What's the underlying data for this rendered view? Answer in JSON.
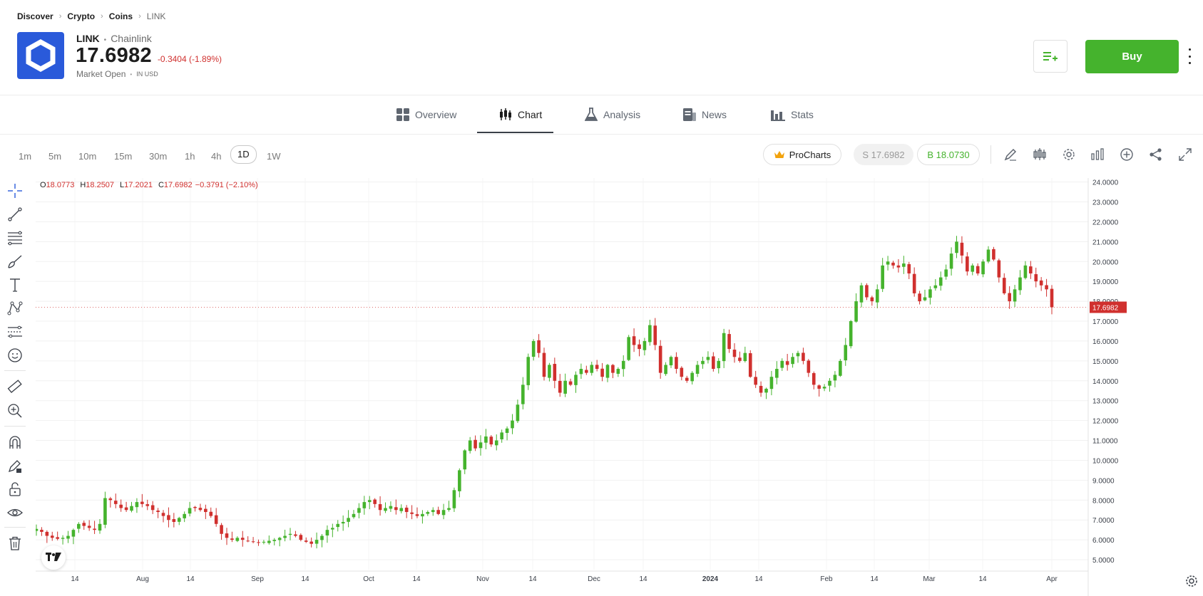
{
  "breadcrumb": [
    "Discover",
    "Crypto",
    "Coins",
    "LINK"
  ],
  "instrument": {
    "symbol": "LINK",
    "name": "Chainlink",
    "price": "17.6982",
    "change": "-0.3404 (-1.89%)",
    "market_status": "Market Open",
    "currency": "IN USD"
  },
  "actions": {
    "buy_label": "Buy"
  },
  "tabs": [
    {
      "label": "Overview",
      "icon": "grid-icon"
    },
    {
      "label": "Chart",
      "icon": "candles-icon",
      "active": true
    },
    {
      "label": "Analysis",
      "icon": "flask-icon"
    },
    {
      "label": "News",
      "icon": "newspaper-icon"
    },
    {
      "label": "Stats",
      "icon": "bars-icon"
    }
  ],
  "timeframes": [
    "1m",
    "5m",
    "10m",
    "15m",
    "30m",
    "1h",
    "4h",
    "1D",
    "1W"
  ],
  "active_timeframe": "1D",
  "toolbar": {
    "procharts_label": "ProCharts",
    "sell_label": "S 17.6982",
    "buy_label": "B 18.0730"
  },
  "ohlc": {
    "o_label": "O",
    "o": "18.0773",
    "h_label": "H",
    "h": "18.2507",
    "l_label": "L",
    "l": "17.2021",
    "c_label": "C",
    "c": "17.6982",
    "chg": "−0.3791 (−2.10%)"
  },
  "colors": {
    "up": "#45b32d",
    "down": "#d0302e",
    "accent": "#45b32d",
    "logo": "#2a5ada"
  },
  "chart_data": {
    "type": "candlestick",
    "last_price": 17.6982,
    "last_price_label": "17.6982",
    "ylim": [
      4.5,
      24.2
    ],
    "y_ticks": [
      "24.0000",
      "23.0000",
      "22.0000",
      "21.0000",
      "20.0000",
      "19.0000",
      "18.0000",
      "17.0000",
      "16.0000",
      "15.0000",
      "14.0000",
      "13.0000",
      "12.0000",
      "11.0000",
      "10.0000",
      "9.0000",
      "8.0000",
      "7.0000",
      "6.0000",
      "5.0000"
    ],
    "x_ticks": [
      "14",
      "Aug",
      "14",
      "Sep",
      "14",
      "Oct",
      "14",
      "Nov",
      "14",
      "Dec",
      "14",
      "2024",
      "14",
      "Feb",
      "14",
      "Mar",
      "14",
      "Apr"
    ],
    "closes": [
      6.55,
      6.4,
      6.2,
      6.1,
      6.05,
      6.1,
      6.2,
      6.5,
      6.8,
      6.7,
      6.6,
      6.5,
      6.8,
      8.1,
      8.0,
      7.8,
      7.6,
      7.5,
      7.7,
      7.9,
      7.8,
      7.7,
      7.5,
      7.4,
      7.2,
      7.0,
      6.9,
      7.1,
      7.3,
      7.6,
      7.6,
      7.5,
      7.4,
      7.2,
      6.8,
      6.3,
      6.1,
      6.0,
      6.1,
      6.0,
      5.95,
      5.9,
      5.85,
      5.9,
      5.95,
      6.0,
      6.1,
      6.2,
      6.3,
      6.2,
      6.0,
      5.9,
      5.8,
      6.0,
      6.2,
      6.5,
      6.6,
      6.8,
      6.9,
      7.1,
      7.3,
      7.6,
      7.9,
      8.0,
      7.8,
      7.5,
      7.6,
      7.7,
      7.5,
      7.6,
      7.4,
      7.3,
      7.2,
      7.3,
      7.4,
      7.5,
      7.3,
      7.5,
      7.6,
      8.5,
      9.5,
      10.5,
      11.0,
      10.6,
      10.9,
      11.2,
      10.8,
      11.0,
      11.4,
      11.6,
      12.0,
      12.8,
      13.8,
      15.2,
      16.0,
      15.4,
      14.2,
      14.8,
      14.0,
      13.4,
      14.0,
      13.8,
      14.3,
      14.6,
      14.4,
      14.8,
      14.6,
      14.2,
      14.8,
      14.4,
      14.6,
      15.0,
      16.2,
      15.8,
      15.6,
      16.0,
      16.8,
      15.8,
      14.4,
      14.8,
      15.2,
      14.6,
      14.2,
      14.0,
      14.4,
      14.8,
      15.0,
      15.2,
      14.6,
      15.0,
      16.4,
      15.6,
      15.2,
      15.0,
      15.4,
      14.2,
      13.8,
      13.4,
      13.6,
      14.2,
      14.6,
      15.0,
      14.8,
      15.2,
      15.4,
      15.0,
      14.4,
      13.8,
      13.6,
      13.7,
      14.0,
      14.3,
      15.0,
      15.8,
      17.0,
      18.0,
      18.8,
      18.2,
      18.0,
      18.6,
      19.8,
      20.0,
      19.8,
      19.7,
      19.9,
      19.4,
      18.4,
      18.0,
      18.2,
      18.6,
      18.8,
      19.2,
      19.6,
      20.4,
      21.0,
      20.3,
      19.5,
      19.8,
      19.4,
      20.0,
      20.6,
      20.1,
      19.2,
      18.4,
      18.0,
      18.6,
      19.2,
      19.8,
      19.4,
      19.0,
      18.8,
      18.6,
      17.7
    ]
  }
}
